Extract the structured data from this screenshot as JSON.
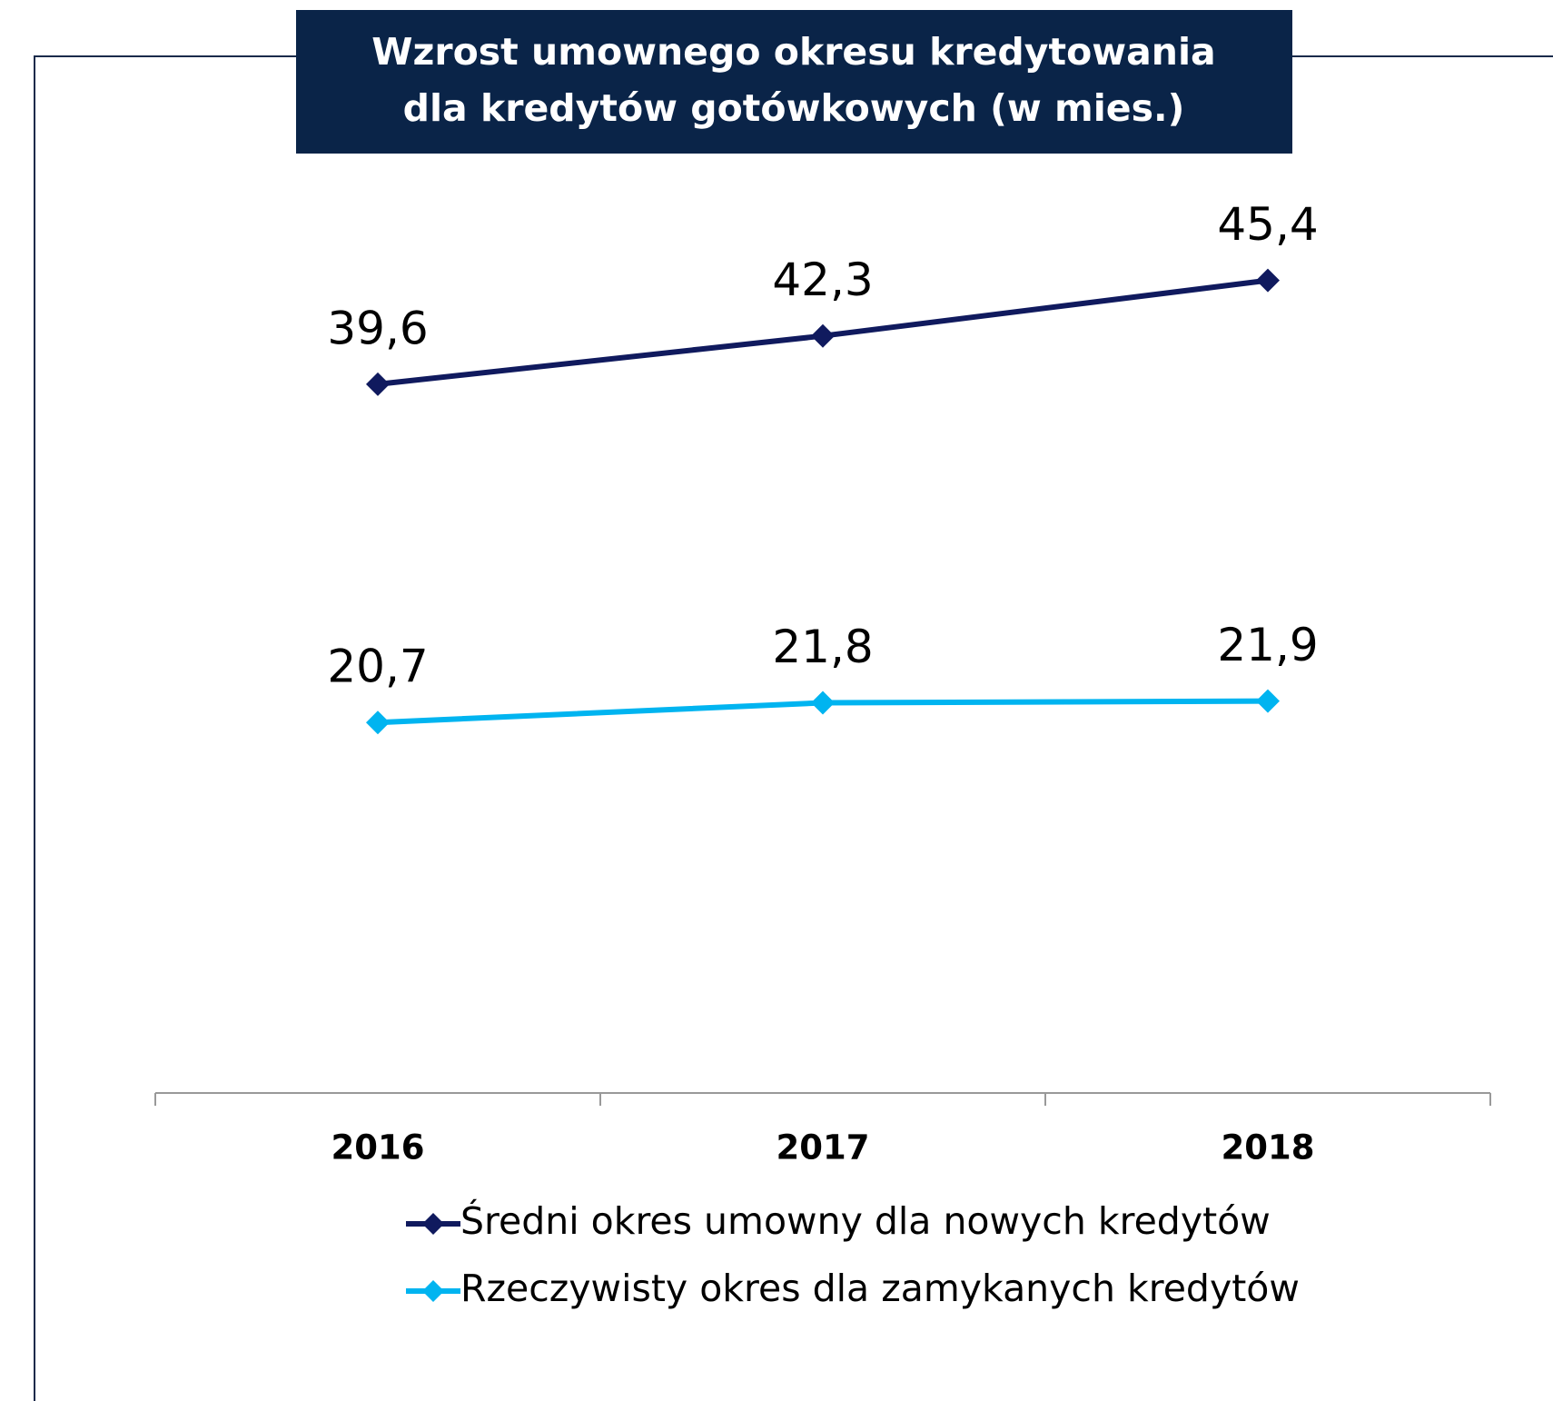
{
  "chart_data": {
    "type": "line",
    "title": [
      "Wzrost umownego okresu kredytowania",
      "dla kredytów gotówkowych (w mies.)"
    ],
    "categories": [
      "2016",
      "2017",
      "2018"
    ],
    "series": [
      {
        "name": "Średni okres umowny dla nowych kredytów",
        "color": "#101a5e",
        "values": [
          39.6,
          42.3,
          45.4
        ],
        "value_labels": [
          "39,6",
          "42,3",
          "45,4"
        ]
      },
      {
        "name": "Rzeczywisty okres dla zamykanych kredytów",
        "color": "#00b4f0",
        "values": [
          20.7,
          21.8,
          21.9
        ],
        "value_labels": [
          "20,7",
          "21,8",
          "21,9"
        ]
      }
    ],
    "ylim": [
      0,
      50
    ],
    "title_background": "#0a2448"
  }
}
